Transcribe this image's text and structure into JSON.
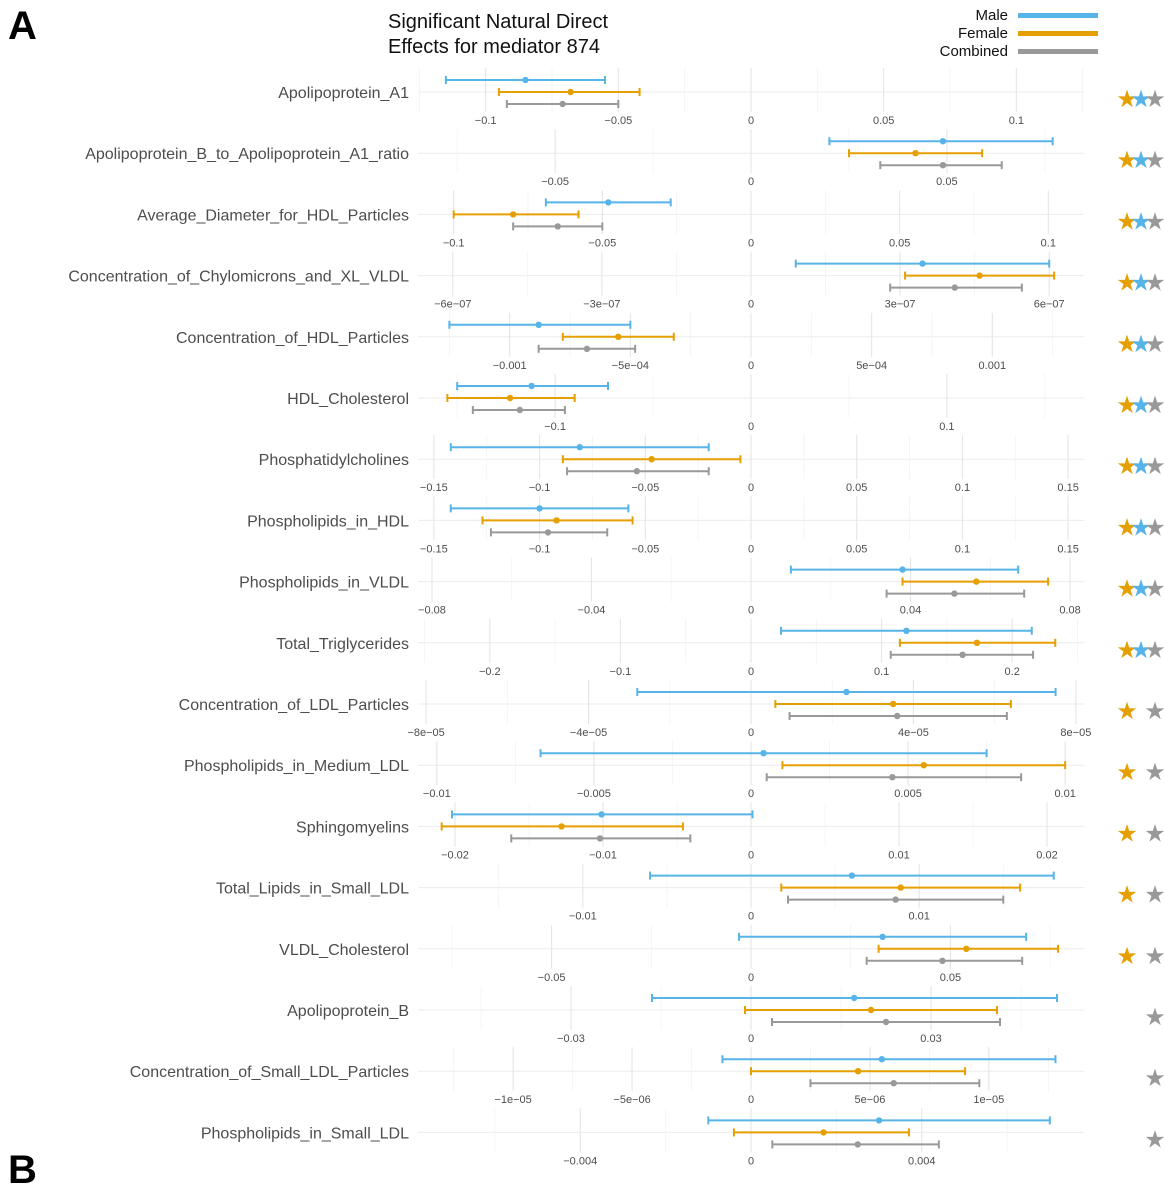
{
  "panel_letter": "A",
  "panel_letter_b": "B",
  "chart_data": {
    "type": "errorbar",
    "title": "Significant Natural Direct Effects for mediator 874",
    "title_lines": [
      "Significant Natural Direct",
      "Effects for mediator 874"
    ],
    "legend": [
      {
        "name": "Male",
        "color": "#56B4E9"
      },
      {
        "name": "Female",
        "color": "#E69F00"
      },
      {
        "name": "Combined",
        "color": "#999999"
      }
    ],
    "star_colors": {
      "female": "#E69F00",
      "male": "#56B4E9",
      "combined": "#999999"
    },
    "rows": [
      {
        "label": "Apolipoprotein_A1",
        "xlim": [
          -0.1255,
          0.1255
        ],
        "ticks": [
          {
            "v": -0.1,
            "t": "−0.1"
          },
          {
            "v": -0.05,
            "t": "−0.05"
          },
          {
            "v": 0,
            "t": "0"
          },
          {
            "v": 0.05,
            "t": "0.05"
          },
          {
            "v": 0.1,
            "t": "0.1"
          }
        ],
        "male": [
          -0.115,
          -0.085,
          -0.055
        ],
        "female": [
          -0.095,
          -0.068,
          -0.042
        ],
        "combined": [
          -0.092,
          -0.071,
          -0.05
        ],
        "stars": [
          "female",
          "male",
          "combined"
        ]
      },
      {
        "label": "Apolipoprotein_B_to_Apolipoprotein_A1_ratio",
        "xlim": [
          -0.085,
          0.085
        ],
        "ticks": [
          {
            "v": -0.05,
            "t": "−0.05"
          },
          {
            "v": 0,
            "t": "0"
          },
          {
            "v": 0.05,
            "t": "0.05"
          }
        ],
        "male": [
          0.02,
          0.049,
          0.077
        ],
        "female": [
          0.025,
          0.042,
          0.059
        ],
        "combined": [
          0.033,
          0.049,
          0.064
        ],
        "stars": [
          "female",
          "male",
          "combined"
        ]
      },
      {
        "label": "Average_Diameter_for_HDL_Particles",
        "xlim": [
          -0.112,
          0.112
        ],
        "ticks": [
          {
            "v": -0.1,
            "t": "−0.1"
          },
          {
            "v": -0.05,
            "t": "−0.05"
          },
          {
            "v": 0,
            "t": "0"
          },
          {
            "v": 0.05,
            "t": "0.05"
          },
          {
            "v": 0.1,
            "t": "0.1"
          }
        ],
        "male": [
          -0.069,
          -0.048,
          -0.027
        ],
        "female": [
          -0.1,
          -0.08,
          -0.058
        ],
        "combined": [
          -0.08,
          -0.065,
          -0.05
        ],
        "stars": [
          "female",
          "male",
          "combined"
        ]
      },
      {
        "label": "Concentration_of_Chylomicrons_and_XL_VLDL",
        "xlim": [
          -6.7e-07,
          6.7e-07
        ],
        "ticks": [
          {
            "v": -6e-07,
            "t": "−6e−07"
          },
          {
            "v": -3e-07,
            "t": "−3e−07"
          },
          {
            "v": 0,
            "t": "0"
          },
          {
            "v": 3e-07,
            "t": "3e−07"
          },
          {
            "v": 6e-07,
            "t": "6e−07"
          }
        ],
        "male": [
          9e-08,
          3.45e-07,
          6e-07
        ],
        "female": [
          3.1e-07,
          4.6e-07,
          6.1e-07
        ],
        "combined": [
          2.8e-07,
          4.1e-07,
          5.45e-07
        ],
        "stars": [
          "female",
          "male",
          "combined"
        ]
      },
      {
        "label": "Concentration_of_HDL_Particles",
        "xlim": [
          -0.00138,
          0.00138
        ],
        "ticks": [
          {
            "v": -0.001,
            "t": "−0.001"
          },
          {
            "v": -0.0005,
            "t": "−5e−04"
          },
          {
            "v": 0,
            "t": "0"
          },
          {
            "v": 0.0005,
            "t": "5e−04"
          },
          {
            "v": 0.001,
            "t": "0.001"
          }
        ],
        "male": [
          -0.00125,
          -0.00088,
          -0.0005
        ],
        "female": [
          -0.00078,
          -0.00055,
          -0.00032
        ],
        "combined": [
          -0.00088,
          -0.00068,
          -0.00048
        ],
        "stars": [
          "female",
          "male",
          "combined"
        ]
      },
      {
        "label": "HDL_Cholesterol",
        "xlim": [
          -0.17,
          0.17
        ],
        "ticks": [
          {
            "v": -0.1,
            "t": "−0.1"
          },
          {
            "v": 0,
            "t": "0"
          },
          {
            "v": 0.1,
            "t": "0.1"
          }
        ],
        "male": [
          -0.15,
          -0.112,
          -0.073
        ],
        "female": [
          -0.155,
          -0.123,
          -0.09
        ],
        "combined": [
          -0.142,
          -0.118,
          -0.095
        ],
        "stars": [
          "female",
          "male",
          "combined"
        ]
      },
      {
        "label": "Phosphatidylcholines",
        "xlim": [
          -0.1575,
          0.1575
        ],
        "ticks": [
          {
            "v": -0.15,
            "t": "−0.15"
          },
          {
            "v": -0.1,
            "t": "−0.1"
          },
          {
            "v": -0.05,
            "t": "−0.05"
          },
          {
            "v": 0,
            "t": "0"
          },
          {
            "v": 0.05,
            "t": "0.05"
          },
          {
            "v": 0.1,
            "t": "0.1"
          },
          {
            "v": 0.15,
            "t": "0.15"
          }
        ],
        "male": [
          -0.142,
          -0.081,
          -0.02
        ],
        "female": [
          -0.089,
          -0.047,
          -0.005
        ],
        "combined": [
          -0.087,
          -0.054,
          -0.02
        ],
        "stars": [
          "female",
          "male",
          "combined"
        ]
      },
      {
        "label": "Phospholipids_in_HDL",
        "xlim": [
          -0.1575,
          0.1575
        ],
        "ticks": [
          {
            "v": -0.15,
            "t": "−0.15"
          },
          {
            "v": -0.1,
            "t": "−0.1"
          },
          {
            "v": -0.05,
            "t": "−0.05"
          },
          {
            "v": 0,
            "t": "0"
          },
          {
            "v": 0.05,
            "t": "0.05"
          },
          {
            "v": 0.1,
            "t": "0.1"
          },
          {
            "v": 0.15,
            "t": "0.15"
          }
        ],
        "male": [
          -0.142,
          -0.1,
          -0.058
        ],
        "female": [
          -0.127,
          -0.092,
          -0.056
        ],
        "combined": [
          -0.123,
          -0.096,
          -0.068
        ],
        "stars": [
          "female",
          "male",
          "combined"
        ]
      },
      {
        "label": "Phospholipids_in_VLDL",
        "xlim": [
          -0.0835,
          0.0835
        ],
        "ticks": [
          {
            "v": -0.08,
            "t": "−0.08"
          },
          {
            "v": -0.04,
            "t": "−0.04"
          },
          {
            "v": 0,
            "t": "0"
          },
          {
            "v": 0.04,
            "t": "0.04"
          },
          {
            "v": 0.08,
            "t": "0.08"
          }
        ],
        "male": [
          0.01,
          0.038,
          0.067
        ],
        "female": [
          0.038,
          0.0565,
          0.0745
        ],
        "combined": [
          0.034,
          0.051,
          0.0685
        ],
        "stars": [
          "female",
          "male",
          "combined"
        ]
      },
      {
        "label": "Total_Triglycerides",
        "xlim": [
          -0.255,
          0.255
        ],
        "ticks": [
          {
            "v": -0.2,
            "t": "−0.2"
          },
          {
            "v": -0.1,
            "t": "−0.1"
          },
          {
            "v": 0,
            "t": "0"
          },
          {
            "v": 0.1,
            "t": "0.1"
          },
          {
            "v": 0.2,
            "t": "0.2"
          }
        ],
        "male": [
          0.023,
          0.119,
          0.215
        ],
        "female": [
          0.114,
          0.173,
          0.233
        ],
        "combined": [
          0.107,
          0.162,
          0.216
        ],
        "stars": [
          "female",
          "male",
          "combined"
        ]
      },
      {
        "label": "Concentration_of_LDL_Particles",
        "xlim": [
          -8.2e-05,
          8.2e-05
        ],
        "ticks": [
          {
            "v": -8e-05,
            "t": "−8e−05"
          },
          {
            "v": -4e-05,
            "t": "−4e−05"
          },
          {
            "v": 0,
            "t": "0"
          },
          {
            "v": 4e-05,
            "t": "4e−05"
          },
          {
            "v": 8e-05,
            "t": "8e−05"
          }
        ],
        "male": [
          -2.8e-05,
          2.35e-05,
          7.5e-05
        ],
        "female": [
          6e-06,
          3.5e-05,
          6.4e-05
        ],
        "combined": [
          9.5e-06,
          3.6e-05,
          6.3e-05
        ],
        "stars": [
          "female",
          "combined"
        ]
      },
      {
        "label": "Phospholipids_in_Medium_LDL",
        "xlim": [
          -0.0106,
          0.0106
        ],
        "ticks": [
          {
            "v": -0.01,
            "t": "−0.01"
          },
          {
            "v": -0.005,
            "t": "−0.005"
          },
          {
            "v": 0,
            "t": "0"
          },
          {
            "v": 0.005,
            "t": "0.005"
          },
          {
            "v": 0.01,
            "t": "0.01"
          }
        ],
        "male": [
          -0.0067,
          0.0004,
          0.0075
        ],
        "female": [
          0.001,
          0.0055,
          0.01
        ],
        "combined": [
          0.0005,
          0.0045,
          0.0086
        ],
        "stars": [
          "female",
          "combined"
        ]
      },
      {
        "label": "Sphingomyelins",
        "xlim": [
          -0.0225,
          0.0225
        ],
        "ticks": [
          {
            "v": -0.02,
            "t": "−0.02"
          },
          {
            "v": -0.01,
            "t": "−0.01"
          },
          {
            "v": 0,
            "t": "0"
          },
          {
            "v": 0.01,
            "t": "0.01"
          },
          {
            "v": 0.02,
            "t": "0.02"
          }
        ],
        "male": [
          -0.0202,
          -0.0101,
          0.0001
        ],
        "female": [
          -0.0209,
          -0.0128,
          -0.0046
        ],
        "combined": [
          -0.0162,
          -0.0102,
          -0.0041
        ],
        "stars": [
          "female",
          "combined"
        ]
      },
      {
        "label": "Total_Lipids_in_Small_LDL",
        "xlim": [
          -0.0198,
          0.0198
        ],
        "ticks": [
          {
            "v": -0.01,
            "t": "−0.01"
          },
          {
            "v": 0,
            "t": "0"
          },
          {
            "v": 0.01,
            "t": "0.01"
          }
        ],
        "male": [
          -0.006,
          0.006,
          0.018
        ],
        "female": [
          0.0018,
          0.0089,
          0.016
        ],
        "combined": [
          0.0022,
          0.0086,
          0.015
        ],
        "stars": [
          "female",
          "combined"
        ]
      },
      {
        "label": "VLDL_Cholesterol",
        "xlim": [
          -0.0835,
          0.0835
        ],
        "ticks": [
          {
            "v": -0.05,
            "t": "−0.05"
          },
          {
            "v": 0,
            "t": "0"
          },
          {
            "v": 0.05,
            "t": "0.05"
          }
        ],
        "male": [
          -0.003,
          0.033,
          0.069
        ],
        "female": [
          0.032,
          0.054,
          0.077
        ],
        "combined": [
          0.029,
          0.048,
          0.068
        ],
        "stars": [
          "female",
          "combined"
        ]
      },
      {
        "label": "Apolipoprotein_B",
        "xlim": [
          -0.0555,
          0.0555
        ],
        "ticks": [
          {
            "v": -0.03,
            "t": "−0.03"
          },
          {
            "v": 0,
            "t": "0"
          },
          {
            "v": 0.03,
            "t": "0.03"
          }
        ],
        "male": [
          -0.0165,
          0.0172,
          0.051
        ],
        "female": [
          -0.001,
          0.02,
          0.041
        ],
        "combined": [
          0.0035,
          0.0225,
          0.0415
        ],
        "stars": [
          "combined"
        ]
      },
      {
        "label": "Concentration_of_Small_LDL_Particles",
        "xlim": [
          -1.4e-05,
          1.4e-05
        ],
        "ticks": [
          {
            "v": -1e-05,
            "t": "−1e−05"
          },
          {
            "v": -5e-06,
            "t": "−5e−06"
          },
          {
            "v": 0,
            "t": "0"
          },
          {
            "v": 5e-06,
            "t": "5e−06"
          },
          {
            "v": 1e-05,
            "t": "1e−05"
          }
        ],
        "male": [
          -1.2e-06,
          5.5e-06,
          1.28e-05
        ],
        "female": [
          0,
          4.5e-06,
          9e-06
        ],
        "combined": [
          2.5e-06,
          6e-06,
          9.6e-06
        ],
        "stars": [
          "combined"
        ]
      },
      {
        "label": "Phospholipids_in_Small_LDL",
        "xlim": [
          -0.0078,
          0.0078
        ],
        "ticks": [
          {
            "v": -0.004,
            "t": "−0.004"
          },
          {
            "v": 0,
            "t": "0"
          },
          {
            "v": 0.004,
            "t": "0.004"
          }
        ],
        "male": [
          -0.001,
          0.003,
          0.007
        ],
        "female": [
          -0.0004,
          0.0017,
          0.0037
        ],
        "combined": [
          0.0005,
          0.0025,
          0.0044
        ],
        "stars": [
          "combined"
        ]
      }
    ]
  }
}
